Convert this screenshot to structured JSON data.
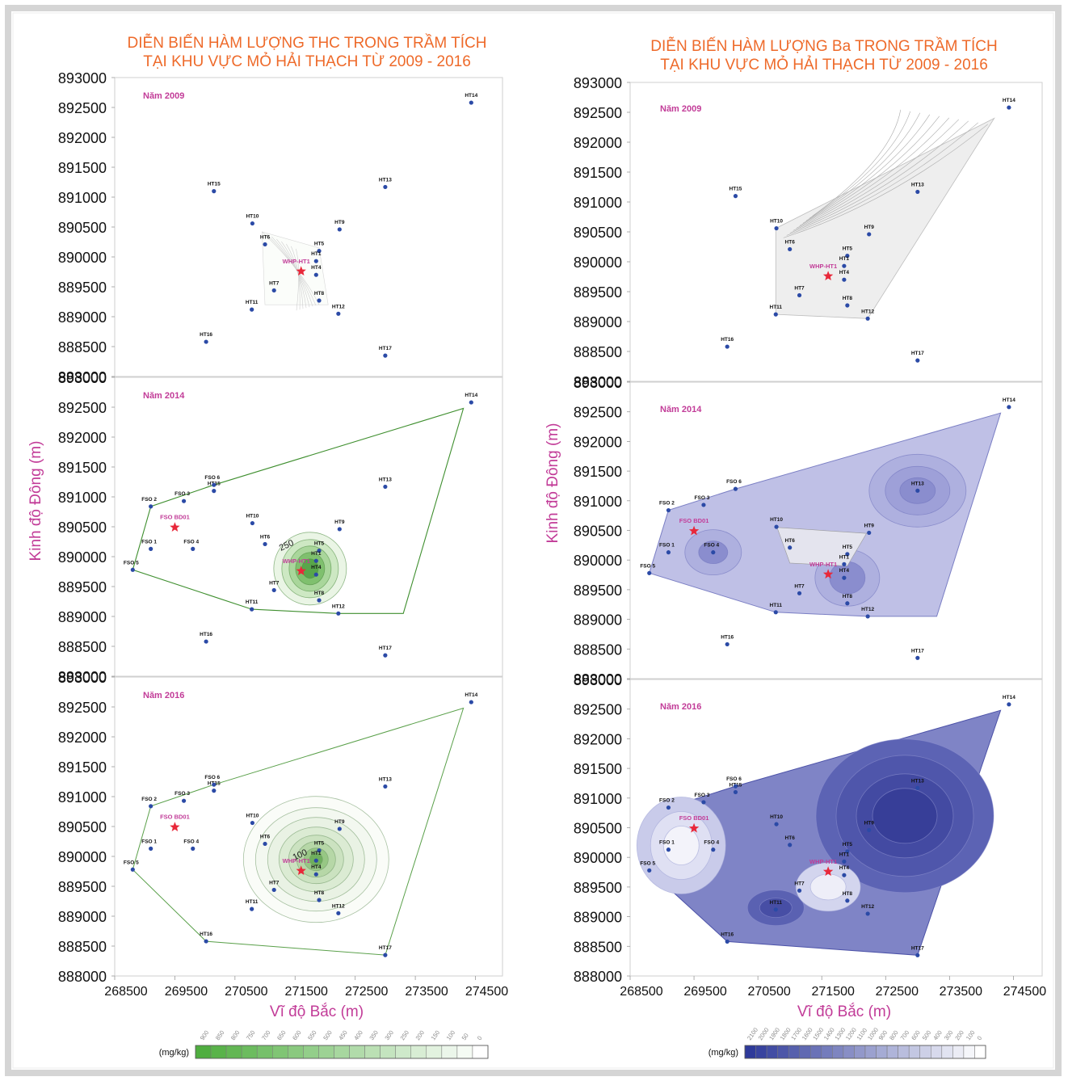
{
  "figure": {
    "left_title": [
      "DIỄN BIẾN HÀM LƯỢNG THC TRONG TRẦM TÍCH",
      "TẠI KHU VỰC MỎ HẢI THẠCH TỪ 2009 - 2016"
    ],
    "right_title": [
      "DIỄN BIẾN HÀM LƯỢNG Ba TRONG TRẦM TÍCH",
      "TẠI KHU VỰC MỎ HẢI THẠCH TỪ 2009 - 2016"
    ],
    "left_ylabel": "Kinh độ Đông (m)",
    "right_ylabel": "Kinh độ Đông (m)",
    "left_xlabel": "Vĩ độ Bắc (m)",
    "right_xlabel": "Vĩ độ Bắc (m)",
    "xticks": [
      "268500",
      "269500",
      "270500",
      "271500",
      "272500",
      "273500",
      "274500"
    ],
    "yticks": [
      "893000",
      "892500",
      "892000",
      "891500",
      "891000",
      "890500",
      "890000",
      "889500",
      "889000",
      "888500",
      "888000"
    ],
    "panel_years": [
      "Năm 2009",
      "Năm 2014",
      "Năm 2016"
    ],
    "station_color": "#2b4aa6",
    "platform_color": "#e8283a",
    "label_purple": "#c23c98"
  },
  "stations": [
    {
      "name": "HT14",
      "x": 274430,
      "y": 892580
    },
    {
      "name": "HT15",
      "x": 270150,
      "y": 891100
    },
    {
      "name": "HT13",
      "x": 273000,
      "y": 891170
    },
    {
      "name": "HT10",
      "x": 270790,
      "y": 890560
    },
    {
      "name": "HT9",
      "x": 272240,
      "y": 890460
    },
    {
      "name": "HT6",
      "x": 271000,
      "y": 890210
    },
    {
      "name": "HT5",
      "x": 271900,
      "y": 890100
    },
    {
      "name": "HT1",
      "x": 271850,
      "y": 889930
    },
    {
      "name": "HT4",
      "x": 271850,
      "y": 889700
    },
    {
      "name": "HT7",
      "x": 271150,
      "y": 889440
    },
    {
      "name": "HT8",
      "x": 271900,
      "y": 889270
    },
    {
      "name": "HT11",
      "x": 270780,
      "y": 889120
    },
    {
      "name": "HT12",
      "x": 272220,
      "y": 889050
    },
    {
      "name": "HT16",
      "x": 270020,
      "y": 888580
    },
    {
      "name": "HT17",
      "x": 273000,
      "y": 888350
    }
  ],
  "fso_stations": [
    {
      "name": "FSO 6",
      "x": 270150,
      "y": 891200
    },
    {
      "name": "FSO 3",
      "x": 269650,
      "y": 890930
    },
    {
      "name": "FSO 2",
      "x": 269100,
      "y": 890840
    },
    {
      "name": "FSO 1",
      "x": 269100,
      "y": 890130
    },
    {
      "name": "FSO 4",
      "x": 269800,
      "y": 890130
    },
    {
      "name": "FSO 5",
      "x": 268800,
      "y": 889780
    }
  ],
  "platforms": [
    {
      "name": "WHP-HT1",
      "x": 271600,
      "y": 889760
    },
    {
      "name": "FSO BD01",
      "x": 269500,
      "y": 890490
    }
  ],
  "thc_contour_labels": [
    {
      "panel": "2014",
      "text": "250"
    },
    {
      "panel": "2016",
      "text": "100"
    }
  ],
  "left_legend": {
    "unit": "(mg/kg)",
    "ticks": [
      "900",
      "850",
      "800",
      "750",
      "700",
      "650",
      "600",
      "550",
      "500",
      "450",
      "400",
      "350",
      "300",
      "250",
      "200",
      "150",
      "100",
      "50",
      "0"
    ],
    "color_high": "#4fae3f",
    "color_low": "#ffffff"
  },
  "right_legend": {
    "unit": "(mg/kg)",
    "ticks": [
      "2100",
      "2000",
      "1900",
      "1800",
      "1700",
      "1600",
      "1500",
      "1400",
      "1300",
      "1200",
      "1100",
      "1000",
      "900",
      "800",
      "700",
      "600",
      "500",
      "400",
      "300",
      "200",
      "100",
      "0"
    ],
    "color_high": "#2e3a9a",
    "color_low": "#ffffff"
  }
}
